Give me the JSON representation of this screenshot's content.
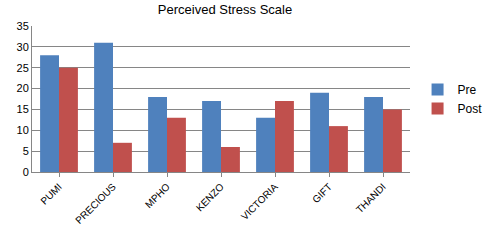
{
  "chart_data": {
    "type": "bar",
    "title": "Perceived Stress Scale",
    "categories": [
      "PUMI",
      "PRECIOUS",
      "MPHO",
      "KENZO",
      "VICTORIA",
      "GIFT",
      "THANDI"
    ],
    "series": [
      {
        "name": "Pre",
        "color": "#4f81bd",
        "values": [
          28,
          31,
          18,
          17,
          13,
          19,
          18
        ]
      },
      {
        "name": "Post",
        "color": "#c0504d",
        "values": [
          25,
          7,
          13,
          6,
          17,
          11,
          15
        ]
      }
    ],
    "ylim": [
      0,
      35
    ],
    "yticks": [
      0,
      5,
      10,
      15,
      20,
      25,
      30,
      35
    ],
    "grid": true,
    "legend": "right"
  }
}
